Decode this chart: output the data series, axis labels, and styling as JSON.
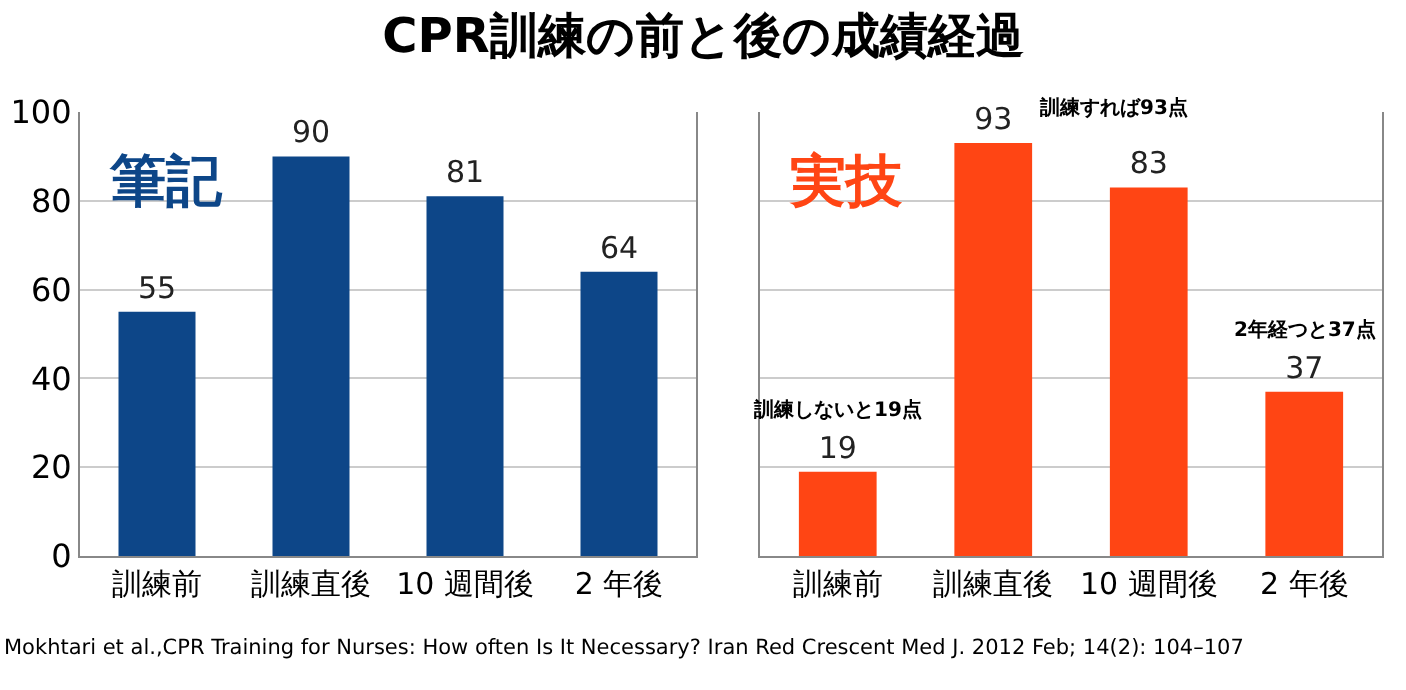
{
  "chart_data": [
    {
      "type": "bar",
      "title": "CPR訓練の前と後の成績経過",
      "subtitle": "筆記",
      "categories": [
        "訓練前",
        "訓練直後",
        "10 週間後",
        "2 年後"
      ],
      "values": [
        55,
        90,
        81,
        64
      ],
      "color": "#0d4688",
      "ylim": [
        0,
        100
      ],
      "yticks": [
        0,
        20,
        40,
        60,
        80,
        100
      ],
      "grid": "y",
      "data_labels": true
    },
    {
      "type": "bar",
      "subtitle": "実技",
      "categories": [
        "訓練前",
        "訓練直後",
        "10 週間後",
        "2 年後"
      ],
      "values": [
        19,
        93,
        83,
        37
      ],
      "color": "#ff4514",
      "ylim": [
        0,
        100
      ],
      "yticks": [
        0,
        20,
        40,
        60,
        80,
        100
      ],
      "grid": "y",
      "data_labels": true,
      "tick_labels": "x",
      "annotations": [
        {
          "text": "訓練しないと19点",
          "x": "訓練前",
          "y": 19
        },
        {
          "text": "訓練すれば93点",
          "x": "訓練直後",
          "y": 93
        },
        {
          "text": "2年経つと37点",
          "x": "2 年後",
          "y": 37
        },
        "Mokhtari et al.,CPR Training for Nurses: How often Is It Necessary? Iran Red Crescent Med J. 2012 Feb; 14(2): 104–107"
      ]
    }
  ]
}
